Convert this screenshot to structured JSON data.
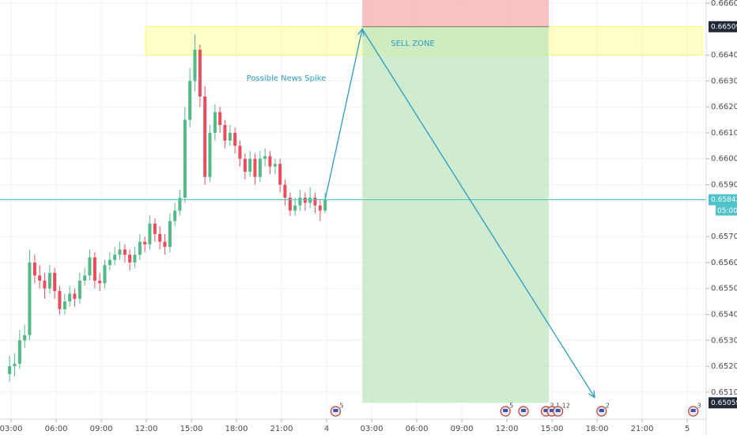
{
  "chart_data": {
    "type": "candlestick",
    "up_color": "#53b987",
    "down_color": "#eb4d5c",
    "xlim": [
      2.26,
      49.26
    ],
    "ylim": [
      0.64996,
      0.66612
    ],
    "grid": true,
    "xticks": [
      {
        "value": 3,
        "label": "03:00"
      },
      {
        "value": 6,
        "label": "06:00"
      },
      {
        "value": 9,
        "label": "09:00"
      },
      {
        "value": 12,
        "label": "12:00"
      },
      {
        "value": 15,
        "label": "15:00"
      },
      {
        "value": 18,
        "label": "18:00"
      },
      {
        "value": 21,
        "label": "21:00"
      },
      {
        "value": 24,
        "label": "4"
      },
      {
        "value": 27,
        "label": "03:00"
      },
      {
        "value": 30,
        "label": "06:00"
      },
      {
        "value": 33,
        "label": "09:00"
      },
      {
        "value": 36,
        "label": "12:00"
      },
      {
        "value": 39,
        "label": "15:00"
      },
      {
        "value": 42,
        "label": "18:00"
      },
      {
        "value": 45,
        "label": "21:00"
      },
      {
        "value": 48,
        "label": "5"
      }
    ],
    "yticks": [
      {
        "value": 0.666,
        "label": "0.66600"
      },
      {
        "value": 0.664,
        "label": "0.66400"
      },
      {
        "value": 0.663,
        "label": "0.66300"
      },
      {
        "value": 0.662,
        "label": "0.66200"
      },
      {
        "value": 0.661,
        "label": "0.66100"
      },
      {
        "value": 0.66,
        "label": "0.66000"
      },
      {
        "value": 0.659,
        "label": "0.65900"
      },
      {
        "value": 0.657,
        "label": "0.65700"
      },
      {
        "value": 0.656,
        "label": "0.65600"
      },
      {
        "value": 0.655,
        "label": "0.65500"
      },
      {
        "value": 0.654,
        "label": "0.65400"
      },
      {
        "value": 0.653,
        "label": "0.65300"
      },
      {
        "value": 0.652,
        "label": "0.65200"
      },
      {
        "value": 0.651,
        "label": "0.65100"
      }
    ],
    "x": [
      2.9,
      3.23,
      3.57,
      3.9,
      4.23,
      4.57,
      4.9,
      5.23,
      5.57,
      5.9,
      6.23,
      6.57,
      6.9,
      7.23,
      7.57,
      7.9,
      8.23,
      8.57,
      8.9,
      9.23,
      9.57,
      9.9,
      10.23,
      10.57,
      10.9,
      11.23,
      11.57,
      11.9,
      12.23,
      12.57,
      12.9,
      13.23,
      13.57,
      13.9,
      14.23,
      14.57,
      14.9,
      15.23,
      15.57,
      15.9,
      16.23,
      16.57,
      16.9,
      17.23,
      17.57,
      17.9,
      18.23,
      18.57,
      18.9,
      19.23,
      19.57,
      19.9,
      20.23,
      20.57,
      20.9,
      21.23,
      21.57,
      21.9,
      22.23,
      22.57,
      22.9,
      23.23,
      23.57,
      23.9
    ],
    "ohlc": [
      [
        0.6517,
        0.6524,
        0.6514,
        0.652
      ],
      [
        0.652,
        0.6525,
        0.6516,
        0.6521
      ],
      [
        0.6521,
        0.6534,
        0.6519,
        0.653
      ],
      [
        0.653,
        0.6536,
        0.6527,
        0.6532
      ],
      [
        0.6532,
        0.6565,
        0.653,
        0.656
      ],
      [
        0.656,
        0.6563,
        0.6552,
        0.6555
      ],
      [
        0.6555,
        0.6559,
        0.655,
        0.6553
      ],
      [
        0.6553,
        0.6556,
        0.6546,
        0.655
      ],
      [
        0.655,
        0.6559,
        0.6548,
        0.6556
      ],
      [
        0.6556,
        0.6558,
        0.6546,
        0.6549
      ],
      [
        0.6549,
        0.6551,
        0.654,
        0.6542
      ],
      [
        0.6542,
        0.6548,
        0.654,
        0.6545
      ],
      [
        0.6545,
        0.6551,
        0.6543,
        0.6548
      ],
      [
        0.6548,
        0.655,
        0.6543,
        0.6546
      ],
      [
        0.6546,
        0.6556,
        0.6544,
        0.6553
      ],
      [
        0.6553,
        0.6558,
        0.6551,
        0.6555
      ],
      [
        0.6555,
        0.6565,
        0.6553,
        0.6562
      ],
      [
        0.6562,
        0.6564,
        0.655,
        0.6553
      ],
      [
        0.6553,
        0.6556,
        0.6549,
        0.6552
      ],
      [
        0.6552,
        0.6561,
        0.655,
        0.6559
      ],
      [
        0.6559,
        0.6564,
        0.6557,
        0.6561
      ],
      [
        0.6561,
        0.6566,
        0.6559,
        0.6563
      ],
      [
        0.6563,
        0.6568,
        0.6561,
        0.6565
      ],
      [
        0.6565,
        0.6567,
        0.656,
        0.6563
      ],
      [
        0.6563,
        0.6565,
        0.6557,
        0.656
      ],
      [
        0.656,
        0.6566,
        0.6558,
        0.6563
      ],
      [
        0.6563,
        0.6571,
        0.6561,
        0.6568
      ],
      [
        0.6568,
        0.657,
        0.6564,
        0.6567
      ],
      [
        0.6567,
        0.6578,
        0.6565,
        0.6575
      ],
      [
        0.6575,
        0.6577,
        0.6568,
        0.6571
      ],
      [
        0.6571,
        0.6574,
        0.6565,
        0.6568
      ],
      [
        0.6568,
        0.6571,
        0.6563,
        0.6566
      ],
      [
        0.6566,
        0.6579,
        0.6564,
        0.6576
      ],
      [
        0.6576,
        0.6583,
        0.6574,
        0.658
      ],
      [
        0.658,
        0.6588,
        0.6578,
        0.6585
      ],
      [
        0.6585,
        0.662,
        0.6583,
        0.6615
      ],
      [
        0.6615,
        0.6635,
        0.6612,
        0.663
      ],
      [
        0.663,
        0.6648,
        0.6626,
        0.6642
      ],
      [
        0.6642,
        0.6644,
        0.662,
        0.6624
      ],
      [
        0.6624,
        0.6628,
        0.659,
        0.6593
      ],
      [
        0.6593,
        0.6613,
        0.6591,
        0.661
      ],
      [
        0.661,
        0.6621,
        0.6607,
        0.6618
      ],
      [
        0.6618,
        0.662,
        0.661,
        0.6613
      ],
      [
        0.6613,
        0.6615,
        0.6604,
        0.6607
      ],
      [
        0.6607,
        0.6613,
        0.6605,
        0.661
      ],
      [
        0.661,
        0.6612,
        0.6602,
        0.6605
      ],
      [
        0.6605,
        0.6607,
        0.6597,
        0.66
      ],
      [
        0.66,
        0.6602,
        0.6592,
        0.6595
      ],
      [
        0.6595,
        0.6603,
        0.6593,
        0.66
      ],
      [
        0.66,
        0.6602,
        0.659,
        0.6593
      ],
      [
        0.6593,
        0.6603,
        0.6591,
        0.66
      ],
      [
        0.66,
        0.6604,
        0.6597,
        0.6601
      ],
      [
        0.6601,
        0.6603,
        0.6594,
        0.6597
      ],
      [
        0.6597,
        0.66,
        0.6594,
        0.6598
      ],
      [
        0.6598,
        0.66,
        0.6587,
        0.659
      ],
      [
        0.659,
        0.6592,
        0.6582,
        0.6585
      ],
      [
        0.6585,
        0.6587,
        0.6578,
        0.658
      ],
      [
        0.658,
        0.6585,
        0.6578,
        0.6582
      ],
      [
        0.6582,
        0.6588,
        0.658,
        0.6585
      ],
      [
        0.6585,
        0.6587,
        0.658,
        0.6583
      ],
      [
        0.6583,
        0.6589,
        0.6581,
        0.6585
      ],
      [
        0.6585,
        0.6587,
        0.6579,
        0.6582
      ],
      [
        0.6582,
        0.6584,
        0.6576,
        0.658
      ],
      [
        0.658,
        0.6587,
        0.6579,
        0.65842
      ]
    ],
    "last_price": 0.65842,
    "last_price_color": "#4fc3c9",
    "countdown": "05:00",
    "sell_zone": {
      "label": "SELL ZONE",
      "low": 0.664,
      "high": 0.66509,
      "x_from": 11.95,
      "x_to": 49.0,
      "color": "#ffff66"
    },
    "position": {
      "entry": 0.66509,
      "stop": 0.6662,
      "target": 0.65059,
      "x_from": 26.37,
      "x_to": 38.79,
      "stop_color": "#f7b7b7",
      "target_color": "#bfe5bd"
    },
    "arrow": {
      "color": "#2a9bc4",
      "points": [
        [
          23.9,
          0.65842
        ],
        [
          26.37,
          0.665
        ],
        [
          41.84,
          0.6508
        ]
      ]
    },
    "note": "Possible News Spike",
    "events": [
      {
        "x": 24.6,
        "label": "5"
      },
      {
        "x": 35.9,
        "label": "5"
      },
      {
        "x": 37.1
      },
      {
        "x": 38.6,
        "label": "2"
      },
      {
        "x": 39.0,
        "label": "1"
      },
      {
        "x": 39.4,
        "label": "12"
      },
      {
        "x": 42.3,
        "label": "2"
      },
      {
        "x": 48.4,
        "label": "3"
      }
    ]
  }
}
